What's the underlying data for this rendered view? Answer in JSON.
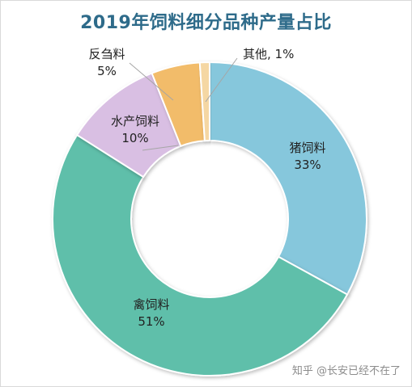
{
  "chart_data": {
    "type": "pie",
    "title": "2019年饲料细分品种产量占比",
    "slices": [
      {
        "name": "猪饲料",
        "value": 33,
        "label": "33%",
        "color": "#86c7dc"
      },
      {
        "name": "禽饲料",
        "value": 51,
        "label": "51%",
        "color": "#5ebfaa"
      },
      {
        "name": "水产饲料",
        "value": 10,
        "label": "10%",
        "color": "#d9bfe3"
      },
      {
        "name": "反刍料",
        "value": 5,
        "label": "5%",
        "color": "#f2bc6b"
      },
      {
        "name": "其他, 1%",
        "value": 1,
        "label": "",
        "color": "#f5d7a3"
      }
    ],
    "donut": true,
    "legend": "none"
  },
  "watermark": "知乎 @长安已经不在了"
}
